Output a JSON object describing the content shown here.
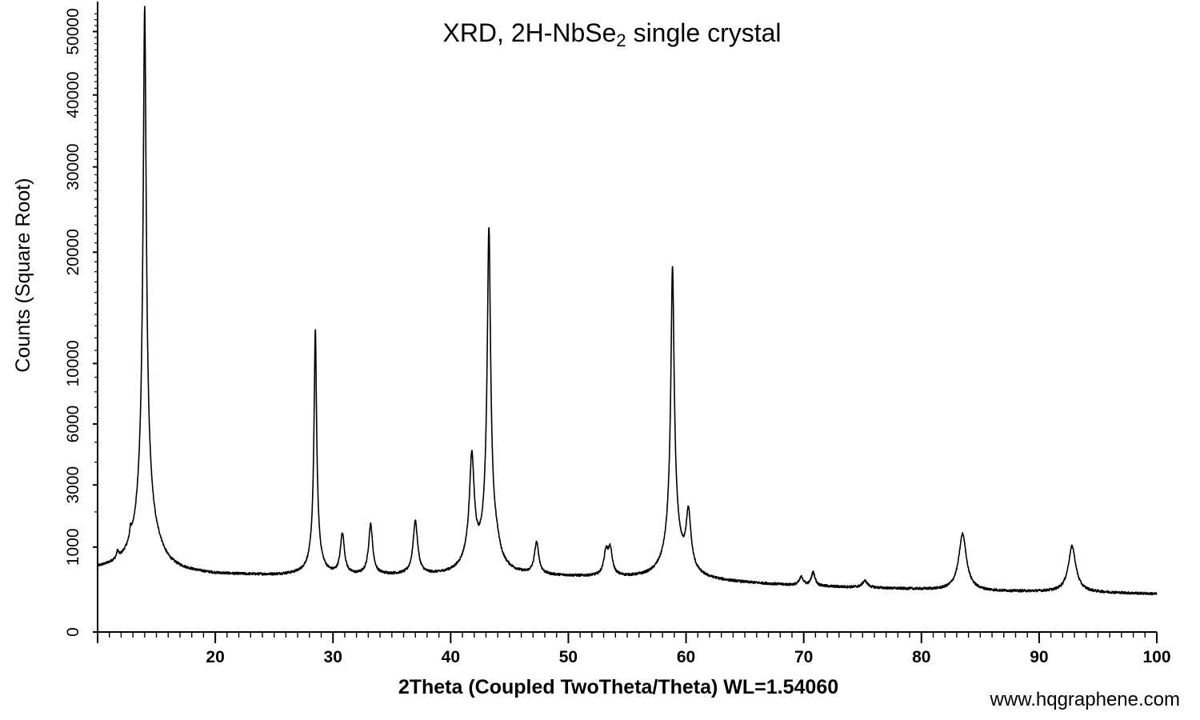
{
  "chart_data": {
    "type": "line",
    "title_parts": {
      "pre": "XRD, 2H-NbSe",
      "sub": "2",
      "post": " single crystal"
    },
    "xlabel": "2Theta (Coupled TwoTheta/Theta) WL=1.54060",
    "ylabel": "Counts (Square Root)",
    "y_scale": "sqrt",
    "xlim": [
      10,
      100
    ],
    "ylim": [
      0,
      54000
    ],
    "x_ticks": [
      20,
      30,
      40,
      50,
      60,
      70,
      80,
      90,
      100
    ],
    "y_ticks": [
      0,
      1000,
      3000,
      6000,
      10000,
      20000,
      30000,
      40000,
      50000
    ],
    "grid": false,
    "series": [
      {
        "color": "#000000",
        "background": [
          [
            10,
            530
          ],
          [
            14,
            570
          ],
          [
            16,
            490
          ],
          [
            20,
            450
          ],
          [
            25,
            440
          ],
          [
            27.5,
            450
          ],
          [
            30,
            430
          ],
          [
            35,
            440
          ],
          [
            40,
            430
          ],
          [
            45,
            430
          ],
          [
            50,
            420
          ],
          [
            55,
            400
          ],
          [
            60,
            380
          ],
          [
            65,
            330
          ],
          [
            70,
            290
          ],
          [
            75,
            270
          ],
          [
            80,
            250
          ],
          [
            85,
            230
          ],
          [
            90,
            225
          ],
          [
            95,
            215
          ],
          [
            100,
            200
          ]
        ],
        "peaks": [
          {
            "x": 11.7,
            "height": 150,
            "width": 0.1
          },
          {
            "x": 12.8,
            "height": 300,
            "width": 0.08
          },
          {
            "x": 14.0,
            "height": 52500,
            "width": 0.12
          },
          {
            "x": 14.1,
            "height": 1200,
            "width": 0.7
          },
          {
            "x": 15.3,
            "height": 60,
            "width": 0.4
          },
          {
            "x": 28.5,
            "height": 12000,
            "width": 0.1
          },
          {
            "x": 28.5,
            "height": 200,
            "width": 0.5
          },
          {
            "x": 30.8,
            "height": 900,
            "width": 0.18
          },
          {
            "x": 33.2,
            "height": 1150,
            "width": 0.18
          },
          {
            "x": 37.0,
            "height": 1250,
            "width": 0.2
          },
          {
            "x": 41.8,
            "height": 3600,
            "width": 0.2
          },
          {
            "x": 41.8,
            "height": 250,
            "width": 0.7
          },
          {
            "x": 43.25,
            "height": 21800,
            "width": 0.13
          },
          {
            "x": 43.25,
            "height": 500,
            "width": 0.6
          },
          {
            "x": 43.9,
            "height": 250,
            "width": 0.25
          },
          {
            "x": 47.3,
            "height": 650,
            "width": 0.2
          },
          {
            "x": 53.2,
            "height": 450,
            "width": 0.2
          },
          {
            "x": 53.55,
            "height": 500,
            "width": 0.2
          },
          {
            "x": 58.85,
            "height": 17400,
            "width": 0.13
          },
          {
            "x": 58.95,
            "height": 700,
            "width": 0.6
          },
          {
            "x": 60.2,
            "height": 1500,
            "width": 0.22
          },
          {
            "x": 69.8,
            "height": 120,
            "width": 0.2
          },
          {
            "x": 70.8,
            "height": 200,
            "width": 0.18
          },
          {
            "x": 75.2,
            "height": 90,
            "width": 0.25
          },
          {
            "x": 83.5,
            "height": 1100,
            "width": 0.32
          },
          {
            "x": 92.8,
            "height": 800,
            "width": 0.32
          }
        ]
      }
    ]
  },
  "watermark": "www.hqgraphene.com"
}
